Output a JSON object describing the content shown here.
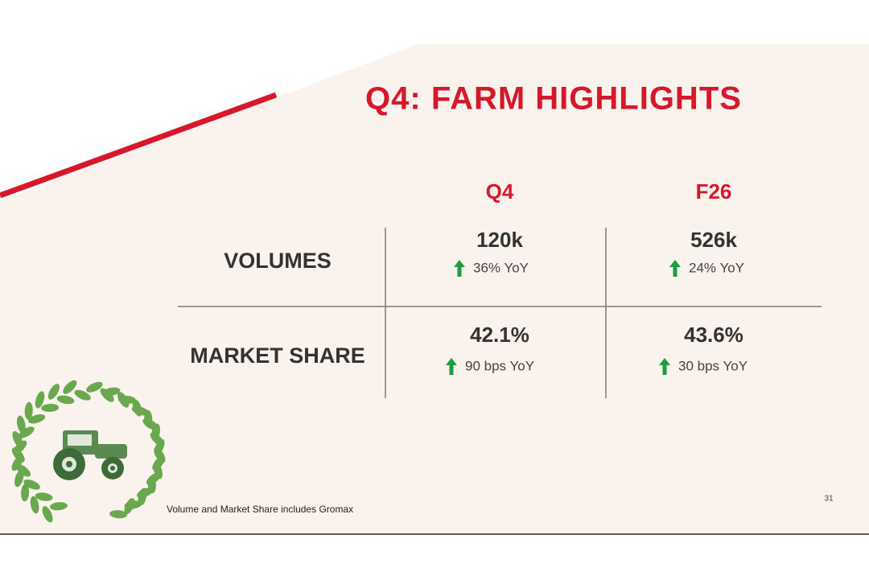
{
  "header": {
    "title": "Q4: FARM HIGHLIGHTS"
  },
  "table": {
    "columns": [
      "Q4",
      "F26"
    ],
    "rows": [
      {
        "label": "VOLUMES",
        "cells": [
          {
            "value": "120k",
            "change": "36% YoY"
          },
          {
            "value": "526k",
            "change": "24% YoY"
          }
        ]
      },
      {
        "label": "MARKET SHARE",
        "cells": [
          {
            "value": "42.1%",
            "change": "90 bps YoY"
          },
          {
            "value": "43.6%",
            "change": "30 bps YoY"
          }
        ]
      }
    ]
  },
  "footnote": "Volume and Market Share includes Gromax",
  "page_number": "31"
}
